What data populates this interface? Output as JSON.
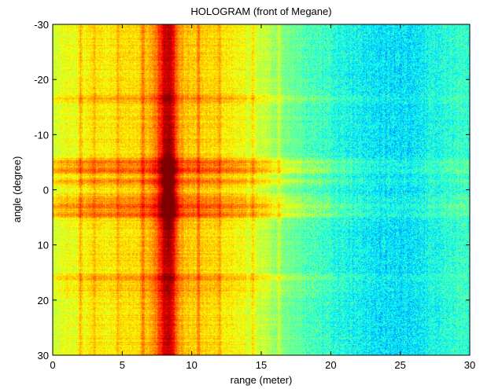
{
  "chart_data": {
    "type": "heatmap",
    "title": "HOLOGRAM (front of Megane)",
    "xlabel": "range (meter)",
    "ylabel": "angle (degree)",
    "xlim": [
      0,
      30
    ],
    "ylim": [
      -30,
      30
    ],
    "y_reversed": true,
    "x_ticks": [
      0,
      5,
      10,
      15,
      20,
      25,
      30
    ],
    "y_ticks": [
      -30,
      -20,
      -10,
      0,
      10,
      20,
      30
    ],
    "grid": false,
    "colormap": "jet",
    "intensity_range": [
      0,
      1
    ],
    "range_profile": {
      "x": [
        0,
        1,
        2,
        3,
        4,
        5,
        6,
        6.5,
        7,
        7.5,
        8,
        8.5,
        9,
        9.5,
        10,
        10.5,
        11,
        11.5,
        12,
        12.5,
        13,
        13.5,
        14,
        15,
        16,
        17,
        18,
        19,
        20,
        21,
        22,
        23,
        24,
        25,
        26,
        27,
        28,
        29,
        30
      ],
      "value": [
        0.58,
        0.6,
        0.62,
        0.64,
        0.64,
        0.65,
        0.66,
        0.67,
        0.7,
        0.76,
        0.92,
        0.94,
        0.74,
        0.68,
        0.67,
        0.67,
        0.66,
        0.66,
        0.65,
        0.64,
        0.63,
        0.62,
        0.6,
        0.57,
        0.53,
        0.49,
        0.46,
        0.44,
        0.42,
        0.4,
        0.38,
        0.36,
        0.35,
        0.35,
        0.36,
        0.38,
        0.4,
        0.42,
        0.43
      ]
    },
    "angle_bands": [
      {
        "angle": -5,
        "strength": 0.12
      },
      {
        "angle": -3.5,
        "strength": 0.14
      },
      {
        "angle": -1.5,
        "strength": 0.1
      },
      {
        "angle": 1.5,
        "strength": 0.08
      },
      {
        "angle": 3,
        "strength": 0.13
      },
      {
        "angle": 4.5,
        "strength": 0.12
      },
      {
        "angle": -16.5,
        "strength": 0.06
      },
      {
        "angle": 16,
        "strength": 0.06
      },
      {
        "angle": 18,
        "strength": 0.04
      }
    ],
    "range_streaks": [
      {
        "range": 2.0,
        "strength": 0.08
      },
      {
        "range": 3.0,
        "strength": 0.06
      },
      {
        "range": 4.7,
        "strength": 0.07
      },
      {
        "range": 6.5,
        "strength": 0.09
      },
      {
        "range": 10.5,
        "strength": 0.08
      },
      {
        "range": 12.0,
        "strength": 0.07
      },
      {
        "range": 14.4,
        "strength": 0.07
      },
      {
        "range": 16.3,
        "strength": 0.06
      }
    ]
  }
}
